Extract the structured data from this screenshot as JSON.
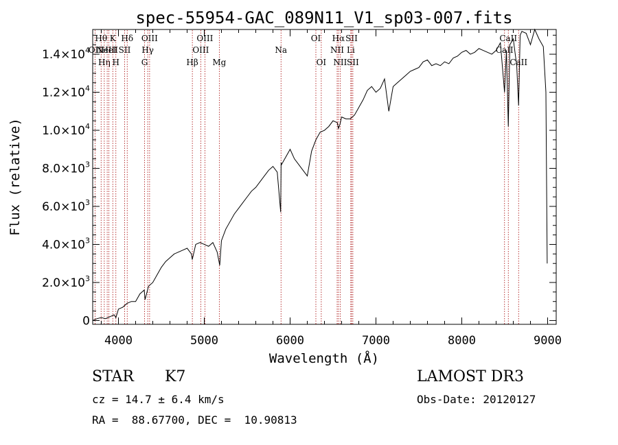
{
  "chart_data": {
    "type": "line",
    "title": "spec-55954-GAC_089N11_V1_sp03-007.fits",
    "xlabel": "Wavelength (Å)",
    "ylabel": "Flux (relative)",
    "xlim": [
      3700,
      9100
    ],
    "ylim": [
      -200,
      15300
    ],
    "x_ticks": [
      {
        "value": 4000,
        "label": "4000"
      },
      {
        "value": 5000,
        "label": "5000"
      },
      {
        "value": 6000,
        "label": "6000"
      },
      {
        "value": 7000,
        "label": "7000"
      },
      {
        "value": 8000,
        "label": "8000"
      },
      {
        "value": 9000,
        "label": "9000"
      }
    ],
    "y_ticks": [
      {
        "value": 0,
        "label": "0",
        "mant": "",
        "exp": ""
      },
      {
        "value": 2000,
        "label": "",
        "mant": "2.0×10",
        "exp": "3"
      },
      {
        "value": 4000,
        "label": "",
        "mant": "4.0×10",
        "exp": "3"
      },
      {
        "value": 6000,
        "label": "",
        "mant": "6.0×10",
        "exp": "3"
      },
      {
        "value": 8000,
        "label": "",
        "mant": "8.0×10",
        "exp": "3"
      },
      {
        "value": 10000,
        "label": "",
        "mant": "1.0×10",
        "exp": "4"
      },
      {
        "value": 12000,
        "label": "",
        "mant": "1.2×10",
        "exp": "4"
      },
      {
        "value": 14000,
        "label": "",
        "mant": "1.4×10",
        "exp": "4"
      }
    ],
    "series": [
      {
        "name": "flux",
        "x": [
          3700,
          3750,
          3800,
          3850,
          3900,
          3950,
          3970,
          4000,
          4050,
          4100,
          4150,
          4200,
          4250,
          4300,
          4310,
          4350,
          4400,
          4450,
          4500,
          4550,
          4600,
          4650,
          4700,
          4750,
          4800,
          4850,
          4860,
          4900,
          4950,
          5000,
          5050,
          5100,
          5150,
          5180,
          5200,
          5250,
          5300,
          5350,
          5400,
          5450,
          5500,
          5550,
          5600,
          5650,
          5700,
          5750,
          5800,
          5850,
          5890,
          5895,
          5900,
          5950,
          6000,
          6050,
          6100,
          6150,
          6200,
          6250,
          6300,
          6350,
          6400,
          6450,
          6500,
          6550,
          6563,
          6580,
          6600,
          6650,
          6700,
          6750,
          6800,
          6850,
          6900,
          6950,
          7000,
          7050,
          7100,
          7150,
          7200,
          7250,
          7300,
          7350,
          7400,
          7450,
          7500,
          7550,
          7600,
          7650,
          7700,
          7750,
          7800,
          7850,
          7900,
          7950,
          8000,
          8050,
          8100,
          8150,
          8200,
          8250,
          8300,
          8350,
          8400,
          8450,
          8498,
          8520,
          8542,
          8560,
          8600,
          8640,
          8662,
          8680,
          8700,
          8750,
          8800,
          8850,
          8900,
          8950,
          8980,
          8995
        ],
        "y": [
          0,
          100,
          150,
          100,
          200,
          300,
          150,
          600,
          700,
          900,
          1000,
          1000,
          1400,
          1600,
          1100,
          1800,
          2000,
          2400,
          2800,
          3100,
          3300,
          3500,
          3600,
          3700,
          3800,
          3500,
          3200,
          4000,
          4100,
          4000,
          3900,
          4100,
          3600,
          2900,
          4200,
          4800,
          5200,
          5600,
          5900,
          6200,
          6500,
          6800,
          7000,
          7300,
          7600,
          7900,
          8100,
          7800,
          5700,
          8300,
          8200,
          8600,
          9000,
          8500,
          8200,
          7900,
          7600,
          8900,
          9500,
          9900,
          10000,
          10200,
          10500,
          10400,
          10100,
          10300,
          10700,
          10600,
          10600,
          10800,
          11200,
          11600,
          12100,
          12300,
          12000,
          12200,
          12700,
          11000,
          12300,
          12500,
          12700,
          12900,
          13100,
          13200,
          13300,
          13600,
          13700,
          13400,
          13500,
          13400,
          13600,
          13500,
          13800,
          13900,
          14100,
          14200,
          14000,
          14100,
          14300,
          14200,
          14100,
          14000,
          14200,
          14600,
          12000,
          14200,
          10200,
          14500,
          14800,
          13400,
          11300,
          15000,
          15200,
          15100,
          14500,
          15300,
          14800,
          14400,
          12000,
          3000
        ]
      }
    ],
    "lines": [
      {
        "x": 3727,
        "label": "OII",
        "row": 1
      },
      {
        "x": 3798,
        "label": "Hθ",
        "row": 0
      },
      {
        "x": 3835,
        "label": "Hη",
        "row": 2
      },
      {
        "x": 3869,
        "label": "NeIII",
        "row": 1
      },
      {
        "x": 3889,
        "label": "HeI",
        "row": 1
      },
      {
        "x": 3934,
        "label": "K",
        "row": 0
      },
      {
        "x": 3970,
        "label": "H",
        "row": 2
      },
      {
        "x": 4072,
        "label": "SII",
        "row": 1
      },
      {
        "x": 4102,
        "label": "Hδ",
        "row": 0
      },
      {
        "x": 4304,
        "label": "G",
        "row": 2
      },
      {
        "x": 4341,
        "label": "Hγ",
        "row": 1
      },
      {
        "x": 4363,
        "label": "OIII",
        "row": 0
      },
      {
        "x": 4861,
        "label": "Hβ",
        "row": 2
      },
      {
        "x": 4959,
        "label": "OIII",
        "row": 1
      },
      {
        "x": 5007,
        "label": "OIII",
        "row": 0
      },
      {
        "x": 5175,
        "label": "Mg",
        "row": 2
      },
      {
        "x": 5894,
        "label": "Na",
        "row": 1
      },
      {
        "x": 6300,
        "label": "OI",
        "row": 0
      },
      {
        "x": 6363,
        "label": "OI",
        "row": 2
      },
      {
        "x": 6548,
        "label": "NII",
        "row": 1
      },
      {
        "x": 6563,
        "label": "Hα",
        "row": 0
      },
      {
        "x": 6583,
        "label": "NII",
        "row": 2
      },
      {
        "x": 6707,
        "label": "Li",
        "row": 1
      },
      {
        "x": 6716,
        "label": "SII",
        "row": 0
      },
      {
        "x": 6731,
        "label": "SII",
        "row": 2
      },
      {
        "x": 8498,
        "label": "CaII",
        "row": 1
      },
      {
        "x": 8542,
        "label": "CaII",
        "row": 0
      },
      {
        "x": 8662,
        "label": "CaII",
        "row": 2
      }
    ],
    "line_color": "#000000",
    "marker_color": "#a50000",
    "grid": false,
    "legend": "none"
  },
  "info": {
    "object_class": "STAR",
    "subclass": "K7",
    "survey": "LAMOST DR3",
    "redshift": "cz = 14.7 ± 6.4 km/s",
    "obs_date": "Obs-Date: 20120127",
    "coords": "RA =  88.67700, DEC =  10.90813"
  }
}
